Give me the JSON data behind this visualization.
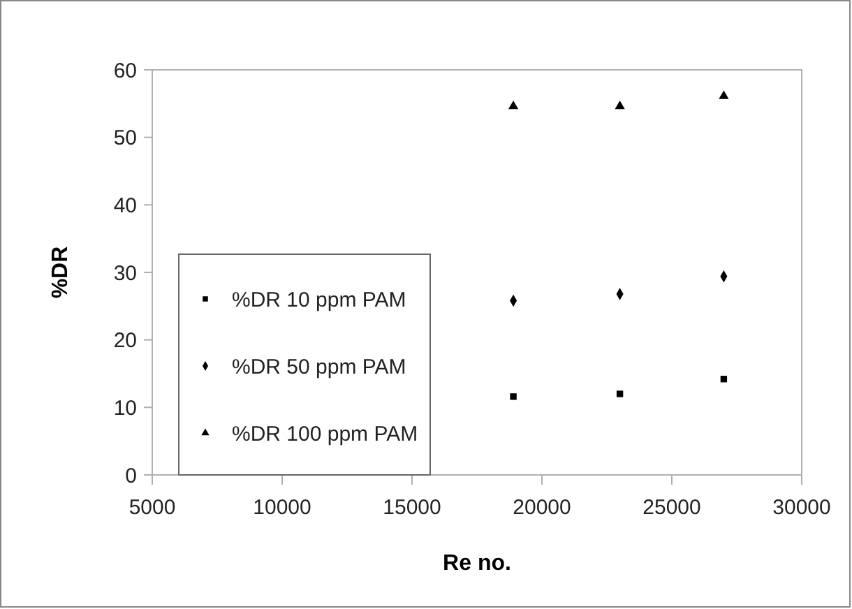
{
  "chart_data": {
    "type": "scatter",
    "xlabel": "Re no.",
    "ylabel": "%DR",
    "x": [
      18900,
      23000,
      27000
    ],
    "series": [
      {
        "name": "%DR 10 ppm PAM",
        "color": "#000000",
        "marker": "square",
        "values": [
          11.6,
          12.0,
          14.2
        ]
      },
      {
        "name": "%DR 50 ppm PAM",
        "color": "#000000",
        "marker": "diamond",
        "values": [
          25.8,
          26.8,
          29.4
        ]
      },
      {
        "name": "%DR 100 ppm PAM",
        "color": "#000000",
        "marker": "triangle",
        "values": [
          54.6,
          54.6,
          56.1
        ]
      }
    ],
    "xlim": [
      5000,
      30000
    ],
    "xticks": [
      5000,
      10000,
      15000,
      20000,
      25000,
      30000
    ],
    "ylim": [
      0,
      60
    ],
    "yticks": [
      0,
      10,
      20,
      30,
      40,
      50,
      60
    ],
    "grid": false,
    "legend": "left"
  }
}
